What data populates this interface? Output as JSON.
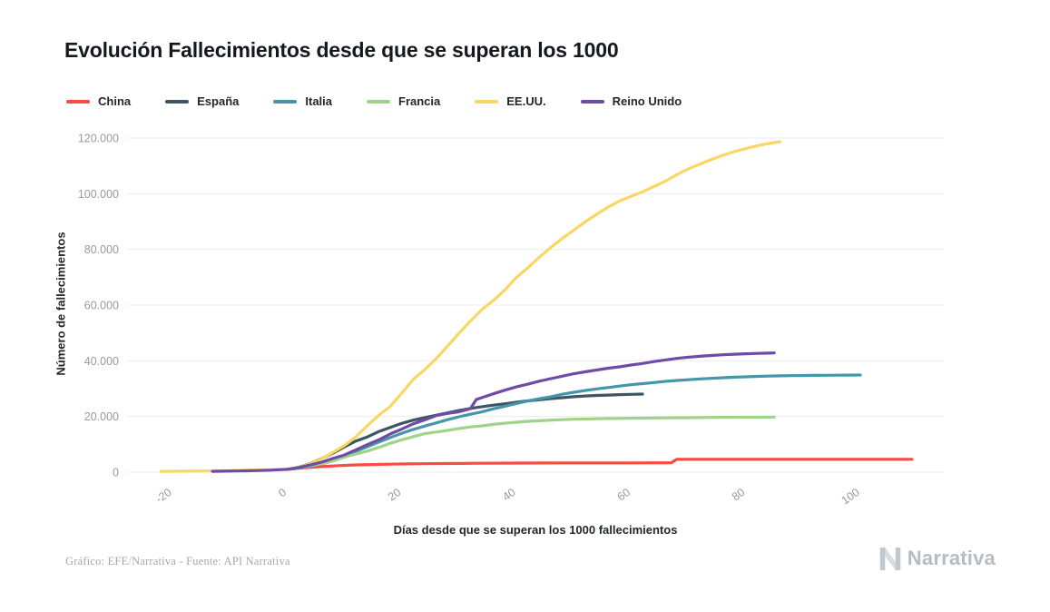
{
  "footer": {
    "credit": "Gráfico: EFE/Narrativa - Fuente: API Narrativa",
    "brand": "Narrativa"
  },
  "chart_data": {
    "type": "line",
    "title": "Evolución Fallecimientos desde que se superan los 1000",
    "xlabel": "Días desde que se superan los 1000 fallecimientos",
    "ylabel": "Número de fallecimientos",
    "xlim": [
      -25,
      112
    ],
    "ylim": [
      0,
      120000
    ],
    "grid": "horizontal-only",
    "legend_position": "top-left",
    "x_ticks": [
      {
        "v": -20,
        "label": "-20"
      },
      {
        "v": 0,
        "label": "0"
      },
      {
        "v": 20,
        "label": "20"
      },
      {
        "v": 40,
        "label": "40"
      },
      {
        "v": 60,
        "label": "60"
      },
      {
        "v": 80,
        "label": "80"
      },
      {
        "v": 100,
        "label": "100"
      }
    ],
    "y_ticks": [
      {
        "v": 0,
        "label": "0"
      },
      {
        "v": 20000,
        "label": "20.000"
      },
      {
        "v": 40000,
        "label": "40.000"
      },
      {
        "v": 60000,
        "label": "60.000"
      },
      {
        "v": 80000,
        "label": "80.000"
      },
      {
        "v": 100000,
        "label": "100.000"
      },
      {
        "v": 120000,
        "label": "120.000"
      }
    ],
    "series": [
      {
        "id": "china",
        "name": "China",
        "color": "#fa4b42",
        "points": [
          [
            0,
            1010
          ],
          [
            3,
            1550
          ],
          [
            6,
            2000
          ],
          [
            9,
            2350
          ],
          [
            12,
            2600
          ],
          [
            15,
            2750
          ],
          [
            18,
            2870
          ],
          [
            21,
            2970
          ],
          [
            24,
            3030
          ],
          [
            27,
            3090
          ],
          [
            30,
            3140
          ],
          [
            33,
            3180
          ],
          [
            36,
            3220
          ],
          [
            40,
            3260
          ],
          [
            44,
            3290
          ],
          [
            48,
            3310
          ],
          [
            52,
            3325
          ],
          [
            56,
            3335
          ],
          [
            60,
            3340
          ],
          [
            64,
            3345
          ],
          [
            67,
            3347
          ],
          [
            68,
            4636
          ],
          [
            72,
            4637
          ],
          [
            76,
            4638
          ],
          [
            80,
            4640
          ],
          [
            85,
            4641
          ],
          [
            90,
            4642
          ],
          [
            95,
            4643
          ],
          [
            100,
            4644
          ],
          [
            104,
            4645
          ],
          [
            109,
            4646
          ]
        ]
      },
      {
        "id": "espana",
        "name": "España",
        "color": "#3d5565",
        "points": [
          [
            0,
            1000
          ],
          [
            2,
            1720
          ],
          [
            4,
            2990
          ],
          [
            6,
            4860
          ],
          [
            8,
            6800
          ],
          [
            10,
            9050
          ],
          [
            12,
            11200
          ],
          [
            14,
            12640
          ],
          [
            16,
            14560
          ],
          [
            18,
            16080
          ],
          [
            20,
            17500
          ],
          [
            22,
            18700
          ],
          [
            24,
            19600
          ],
          [
            26,
            20450
          ],
          [
            28,
            21280
          ],
          [
            30,
            22150
          ],
          [
            32,
            22900
          ],
          [
            34,
            23520
          ],
          [
            36,
            24050
          ],
          [
            38,
            24550
          ],
          [
            40,
            25100
          ],
          [
            42,
            25600
          ],
          [
            44,
            26000
          ],
          [
            46,
            26400
          ],
          [
            48,
            26750
          ],
          [
            50,
            27100
          ],
          [
            52,
            27350
          ],
          [
            54,
            27550
          ],
          [
            56,
            27700
          ],
          [
            58,
            27850
          ],
          [
            60,
            27950
          ],
          [
            62,
            28050
          ]
        ]
      },
      {
        "id": "italia",
        "name": "Italia",
        "color": "#4497a8",
        "points": [
          [
            0,
            1016
          ],
          [
            2,
            1440
          ],
          [
            4,
            2160
          ],
          [
            6,
            2980
          ],
          [
            8,
            4030
          ],
          [
            10,
            5480
          ],
          [
            12,
            7500
          ],
          [
            14,
            9140
          ],
          [
            16,
            10780
          ],
          [
            18,
            12430
          ],
          [
            20,
            13920
          ],
          [
            22,
            15360
          ],
          [
            24,
            16520
          ],
          [
            26,
            17670
          ],
          [
            28,
            18850
          ],
          [
            30,
            19900
          ],
          [
            32,
            20800
          ],
          [
            34,
            21650
          ],
          [
            36,
            22750
          ],
          [
            38,
            23660
          ],
          [
            40,
            24650
          ],
          [
            42,
            25550
          ],
          [
            44,
            26380
          ],
          [
            46,
            27100
          ],
          [
            48,
            27970
          ],
          [
            50,
            28710
          ],
          [
            52,
            29320
          ],
          [
            54,
            29900
          ],
          [
            56,
            30400
          ],
          [
            58,
            30900
          ],
          [
            60,
            31400
          ],
          [
            62,
            31800
          ],
          [
            64,
            32200
          ],
          [
            66,
            32600
          ],
          [
            68,
            32950
          ],
          [
            70,
            33200
          ],
          [
            72,
            33480
          ],
          [
            74,
            33700
          ],
          [
            76,
            33900
          ],
          [
            78,
            34100
          ],
          [
            80,
            34250
          ],
          [
            82,
            34400
          ],
          [
            84,
            34500
          ],
          [
            86,
            34600
          ],
          [
            88,
            34650
          ],
          [
            90,
            34700
          ],
          [
            92,
            34750
          ],
          [
            94,
            34780
          ],
          [
            96,
            34820
          ],
          [
            98,
            34850
          ],
          [
            100,
            34900
          ]
        ]
      },
      {
        "id": "francia",
        "name": "Francia",
        "color": "#9fd389",
        "points": [
          [
            0,
            1100
          ],
          [
            2,
            1700
          ],
          [
            4,
            2310
          ],
          [
            6,
            3020
          ],
          [
            8,
            4030
          ],
          [
            10,
            5400
          ],
          [
            12,
            6510
          ],
          [
            14,
            7560
          ],
          [
            16,
            8910
          ],
          [
            18,
            10330
          ],
          [
            20,
            11600
          ],
          [
            22,
            12740
          ],
          [
            24,
            13830
          ],
          [
            26,
            14400
          ],
          [
            28,
            15000
          ],
          [
            30,
            15700
          ],
          [
            32,
            16240
          ],
          [
            34,
            16640
          ],
          [
            36,
            17170
          ],
          [
            38,
            17580
          ],
          [
            40,
            17920
          ],
          [
            42,
            18250
          ],
          [
            44,
            18470
          ],
          [
            46,
            18680
          ],
          [
            48,
            18850
          ],
          [
            50,
            19000
          ],
          [
            52,
            19090
          ],
          [
            54,
            19180
          ],
          [
            56,
            19270
          ],
          [
            58,
            19320
          ],
          [
            60,
            19380
          ],
          [
            62,
            19430
          ],
          [
            64,
            19470
          ],
          [
            66,
            19510
          ],
          [
            68,
            19550
          ],
          [
            70,
            19580
          ],
          [
            72,
            19620
          ],
          [
            74,
            19650
          ],
          [
            76,
            19680
          ],
          [
            78,
            19700
          ],
          [
            80,
            19720
          ],
          [
            82,
            19740
          ],
          [
            84,
            19760
          ],
          [
            85,
            19780
          ]
        ]
      },
      {
        "id": "eeuu",
        "name": "EE.UU.",
        "color": "#fad763",
        "points": [
          [
            -22,
            300
          ],
          [
            -18,
            360
          ],
          [
            -14,
            450
          ],
          [
            -10,
            570
          ],
          [
            -6,
            740
          ],
          [
            -2,
            940
          ],
          [
            0,
            1050
          ],
          [
            2,
            1700
          ],
          [
            4,
            2900
          ],
          [
            6,
            4800
          ],
          [
            8,
            7100
          ],
          [
            10,
            9600
          ],
          [
            12,
            12700
          ],
          [
            14,
            16700
          ],
          [
            16,
            20400
          ],
          [
            18,
            23600
          ],
          [
            20,
            28300
          ],
          [
            22,
            33300
          ],
          [
            24,
            36800
          ],
          [
            26,
            40700
          ],
          [
            28,
            45300
          ],
          [
            30,
            49900
          ],
          [
            32,
            54300
          ],
          [
            34,
            58400
          ],
          [
            36,
            61700
          ],
          [
            38,
            65400
          ],
          [
            40,
            69900
          ],
          [
            42,
            73400
          ],
          [
            44,
            77200
          ],
          [
            46,
            80700
          ],
          [
            48,
            83900
          ],
          [
            50,
            86900
          ],
          [
            52,
            89900
          ],
          [
            54,
            92600
          ],
          [
            56,
            95200
          ],
          [
            58,
            97400
          ],
          [
            60,
            99000
          ],
          [
            62,
            100700
          ],
          [
            64,
            102600
          ],
          [
            66,
            104500
          ],
          [
            68,
            106900
          ],
          [
            70,
            108900
          ],
          [
            72,
            110600
          ],
          [
            74,
            112300
          ],
          [
            76,
            113800
          ],
          [
            78,
            115100
          ],
          [
            80,
            116200
          ],
          [
            82,
            117200
          ],
          [
            84,
            118000
          ],
          [
            86,
            118700
          ]
        ]
      },
      {
        "id": "reino-unido",
        "name": "Reino Unido",
        "color": "#6f4ba6",
        "points": [
          [
            -13,
            300
          ],
          [
            -11,
            350
          ],
          [
            -9,
            420
          ],
          [
            -7,
            500
          ],
          [
            -5,
            600
          ],
          [
            -3,
            720
          ],
          [
            -1,
            900
          ],
          [
            0,
            1020
          ],
          [
            2,
            1650
          ],
          [
            4,
            2550
          ],
          [
            6,
            3600
          ],
          [
            8,
            4930
          ],
          [
            10,
            6160
          ],
          [
            12,
            7980
          ],
          [
            14,
            9880
          ],
          [
            16,
            11600
          ],
          [
            18,
            13730
          ],
          [
            20,
            15460
          ],
          [
            22,
            17340
          ],
          [
            24,
            18740
          ],
          [
            26,
            20320
          ],
          [
            28,
            21090
          ],
          [
            30,
            21680
          ],
          [
            32,
            22790
          ],
          [
            33,
            26100
          ],
          [
            34,
            26770
          ],
          [
            36,
            28130
          ],
          [
            38,
            29430
          ],
          [
            40,
            30620
          ],
          [
            42,
            31590
          ],
          [
            44,
            32690
          ],
          [
            46,
            33600
          ],
          [
            48,
            34470
          ],
          [
            50,
            35340
          ],
          [
            52,
            36040
          ],
          [
            54,
            36680
          ],
          [
            56,
            37340
          ],
          [
            58,
            37840
          ],
          [
            60,
            38490
          ],
          [
            62,
            39040
          ],
          [
            64,
            39730
          ],
          [
            66,
            40310
          ],
          [
            68,
            40870
          ],
          [
            70,
            41280
          ],
          [
            72,
            41600
          ],
          [
            74,
            41900
          ],
          [
            76,
            42150
          ],
          [
            78,
            42350
          ],
          [
            80,
            42520
          ],
          [
            82,
            42650
          ],
          [
            84,
            42750
          ],
          [
            85,
            42800
          ]
        ]
      }
    ]
  }
}
